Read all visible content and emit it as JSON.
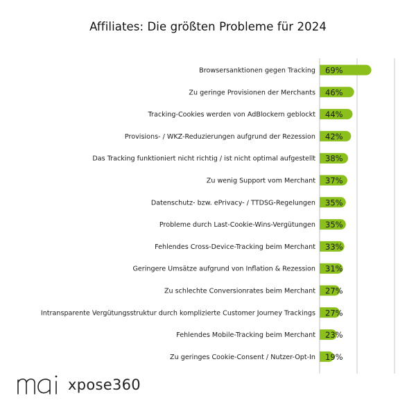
{
  "title": "Affiliates: Die größten Probleme für 2024",
  "logos": {
    "brand1": "mai",
    "brand2": "xpose360"
  },
  "colors": {
    "bar": "#8bbf1c",
    "axis": "#c8c8c8",
    "text": "#1a1a1a"
  },
  "chart_data": {
    "type": "bar",
    "orientation": "horizontal",
    "title": "Affiliates: Die größten Probleme für 2024",
    "xlabel": "",
    "ylabel": "",
    "xlim": [
      0,
      100
    ],
    "grid": true,
    "categories": [
      "Browsersanktionen gegen Tracking",
      "Zu geringe Provisionen der Merchants",
      "Tracking-Cookies werden von AdBlockern geblockt",
      "Provisions- / WKZ-Reduzierungen aufgrund der Rezession",
      "Das Tracking funktioniert nicht richtig / ist nicht optimal aufgestellt",
      "Zu wenig Support vom Merchant",
      "Datenschutz- bzw. ePrivacy- / TTDSG-Regelungen",
      "Probleme durch Last-Cookie-Wins-Vergütungen",
      "Fehlendes Cross-Device-Tracking beim Merchant",
      "Geringere Umsätze aufgrund von Inflation & Rezession",
      "Zu schlechte Conversionrates beim Merchant",
      "Intransparente Vergütungsstruktur durch komplizierte Customer Journey Trackings",
      "Fehlendes Mobile-Tracking beim Merchant",
      "Zu geringes Cookie-Consent / Nutzer-Opt-In"
    ],
    "values": [
      69,
      46,
      44,
      42,
      38,
      37,
      35,
      35,
      33,
      31,
      27,
      27,
      23,
      19
    ],
    "value_labels": [
      "69%",
      "46%",
      "44%",
      "42%",
      "38%",
      "37%",
      "35%",
      "35%",
      "33%",
      "31%",
      "27%",
      "27%",
      "23%",
      "19%"
    ]
  }
}
